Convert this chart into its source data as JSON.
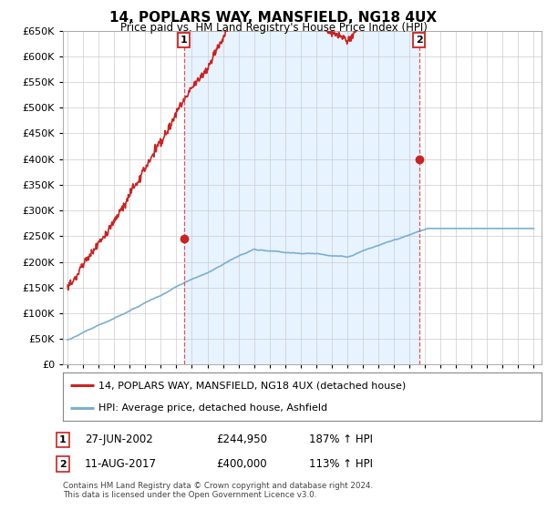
{
  "title": "14, POPLARS WAY, MANSFIELD, NG18 4UX",
  "subtitle": "Price paid vs. HM Land Registry's House Price Index (HPI)",
  "legend_line1": "14, POPLARS WAY, MANSFIELD, NG18 4UX (detached house)",
  "legend_line2": "HPI: Average price, detached house, Ashfield",
  "footnote1": "Contains HM Land Registry data © Crown copyright and database right 2024.",
  "footnote2": "This data is licensed under the Open Government Licence v3.0.",
  "sale1_label": "1",
  "sale1_date": "27-JUN-2002",
  "sale1_price": "£244,950",
  "sale1_hpi": "187% ↑ HPI",
  "sale2_label": "2",
  "sale2_date": "11-AUG-2017",
  "sale2_price": "£400,000",
  "sale2_hpi": "113% ↑ HPI",
  "hpi_color": "#7aafd4",
  "price_color": "#cc2222",
  "shade_color": "#ddeeff",
  "marker_box_color": "#cc2222",
  "vline_color": "#dd4444",
  "ylim": [
    0,
    650000
  ],
  "ytick_step": 50000,
  "xlim_start": 1994.7,
  "xlim_end": 2025.5,
  "sale1_x": 2002.49,
  "sale1_y": 244950,
  "sale2_x": 2017.61,
  "sale2_y": 400000,
  "n_points": 800
}
